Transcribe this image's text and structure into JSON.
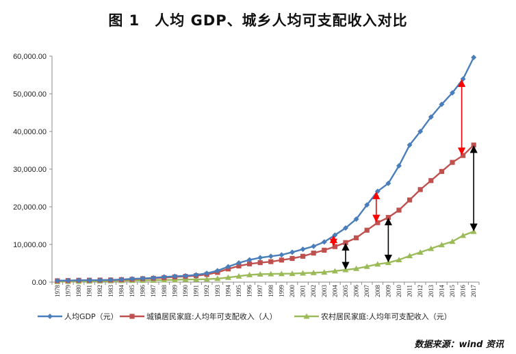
{
  "chart_data": {
    "type": "line",
    "title": "图 1　人均 GDP、城乡人均可支配收入对比",
    "xlabel": "",
    "ylabel": "",
    "ylim": [
      0,
      60000
    ],
    "yticks": [
      "0.00",
      "10,000.00",
      "20,000.00",
      "30,000.00",
      "40,000.00",
      "50,000.00",
      "60,000.00"
    ],
    "categories": [
      "1978",
      "1979",
      "1980",
      "1981",
      "1982",
      "1983",
      "1984",
      "1985",
      "1986",
      "1987",
      "1988",
      "1989",
      "1990",
      "1991",
      "1992",
      "1993",
      "1994",
      "1995",
      "1996",
      "1997",
      "1998",
      "1999",
      "2000",
      "2001",
      "2002",
      "2003",
      "2004",
      "2005",
      "2006",
      "2007",
      "2008",
      "2009",
      "2010",
      "2011",
      "2012",
      "2013",
      "2014",
      "2015",
      "2016",
      "2017"
    ],
    "grid": false,
    "legend_position": "bottom",
    "series": [
      {
        "name": "人均GDP（元）",
        "color": "#4a7ebb",
        "marker": "diamond",
        "values": [
          385,
          423,
          468,
          497,
          533,
          588,
          702,
          866,
          973,
          1123,
          1378,
          1536,
          1663,
          1912,
          2334,
          3027,
          4081,
          5091,
          5898,
          6481,
          6860,
          7229,
          7942,
          8717,
          9506,
          10666,
          12487,
          14368,
          16738,
          20505,
          24121,
          26222,
          30876,
          36403,
          40007,
          43852,
          47203,
          50251,
          53935,
          59660
        ]
      },
      {
        "name": "城镇居民家庭:人均年可支配收入（人）",
        "color": "#c0504d",
        "marker": "square",
        "values": [
          343,
          405,
          478,
          500,
          535,
          565,
          652,
          739,
          900,
          1002,
          1180,
          1374,
          1510,
          1701,
          2027,
          2577,
          3496,
          4283,
          4839,
          5160,
          5425,
          5854,
          6280,
          6860,
          7703,
          8472,
          9422,
          10493,
          11759,
          13786,
          15781,
          17175,
          19109,
          21810,
          24565,
          26955,
          29381,
          31790,
          33616,
          36396
        ]
      },
      {
        "name": "农村居民家庭:人均年可支配收入（元）",
        "color": "#9bbb59",
        "marker": "triangle",
        "values": [
          134,
          160,
          191,
          223,
          270,
          310,
          355,
          398,
          424,
          463,
          545,
          602,
          686,
          709,
          784,
          922,
          1221,
          1578,
          1926,
          2090,
          2162,
          2210,
          2253,
          2366,
          2476,
          2622,
          2936,
          3255,
          3587,
          4140,
          4761,
          5153,
          5919,
          6977,
          7917,
          8896,
          9892,
          10772,
          12363,
          13432
        ]
      }
    ],
    "annotations": [
      {
        "kind": "double-arrow",
        "color": "#ff0000",
        "year": "2004"
      },
      {
        "kind": "double-arrow",
        "color": "#000000",
        "year": "2005"
      },
      {
        "kind": "double-arrow",
        "color": "#ff0000",
        "year": "2008"
      },
      {
        "kind": "double-arrow",
        "color": "#000000",
        "year": "2009"
      },
      {
        "kind": "double-arrow",
        "color": "#ff0000",
        "year": "2016"
      },
      {
        "kind": "double-arrow",
        "color": "#000000",
        "year": "2017"
      }
    ]
  },
  "source_note": "数据来源：wind 资讯"
}
